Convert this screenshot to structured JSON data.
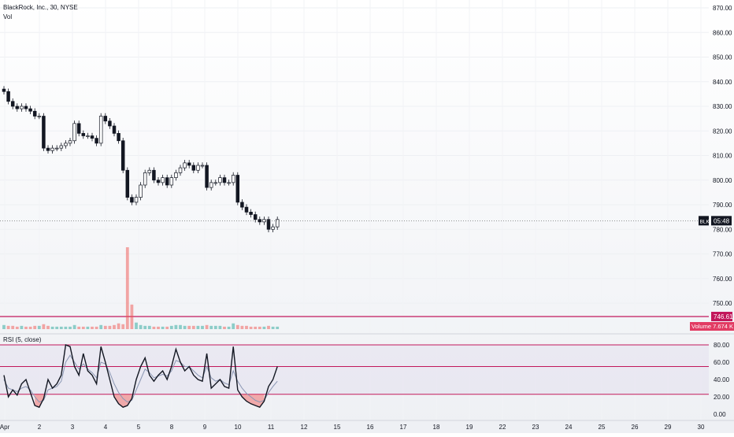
{
  "header": {
    "title": "BlackRock, Inc., 30, NYSE",
    "volume_label": "Vol"
  },
  "chart_data": {
    "type": "candlestick",
    "symbol": "BLK",
    "timeframe": "30",
    "exchange": "NYSE",
    "price_axis": {
      "ticks": [
        "870.00",
        "860.00",
        "850.00",
        "840.00",
        "830.00",
        "820.00",
        "810.00",
        "800.00",
        "790.00",
        "780.00",
        "770.00",
        "760.00",
        "750.00"
      ],
      "range": [
        745,
        872
      ]
    },
    "last_price_badge": {
      "symbol": "BLK",
      "countdown": "05:48",
      "price": 783.5
    },
    "support_line": {
      "label": "746.61",
      "value": 746.61,
      "color": "#c2185b"
    },
    "volume_badge": {
      "label": "Volume",
      "value": "7.674 K"
    },
    "price_series": [
      836,
      832,
      830,
      829,
      830,
      829,
      828,
      826,
      826,
      813,
      812,
      813,
      813,
      814,
      815,
      816,
      823,
      819,
      818,
      818,
      817,
      815,
      826,
      824,
      822,
      819,
      816,
      804,
      793,
      791,
      793,
      798,
      803,
      804,
      800,
      799,
      801,
      798,
      801,
      803,
      805,
      807,
      806,
      804,
      806,
      806,
      797,
      799,
      799,
      801,
      799,
      799,
      802,
      791,
      789,
      787,
      786,
      784,
      783,
      784,
      780,
      781,
      784
    ],
    "volume_series": [
      5,
      4,
      4,
      3,
      4,
      3,
      3,
      4,
      4,
      6,
      4,
      3,
      3,
      3,
      3,
      3,
      5,
      3,
      3,
      3,
      3,
      3,
      5,
      4,
      4,
      5,
      7,
      6,
      100,
      30,
      8,
      5,
      4,
      4,
      3,
      3,
      3,
      3,
      4,
      5,
      5,
      4,
      4,
      4,
      4,
      4,
      5,
      4,
      4,
      4,
      3,
      3,
      7,
      5,
      4,
      4,
      3,
      3,
      3,
      3,
      4,
      3,
      3
    ],
    "rsi": {
      "title": "RSI (5, close)",
      "ticks": [
        "80.00",
        "60.00",
        "40.00",
        "20.00",
        "0.00"
      ],
      "range": [
        0,
        85
      ],
      "upper_band": 55,
      "lower_band": 23,
      "rsi_values": [
        45,
        20,
        28,
        22,
        35,
        40,
        25,
        10,
        8,
        18,
        40,
        30,
        35,
        45,
        80,
        78,
        55,
        45,
        70,
        50,
        45,
        35,
        78,
        60,
        40,
        20,
        12,
        8,
        10,
        18,
        40,
        55,
        65,
        45,
        38,
        45,
        50,
        40,
        55,
        75,
        60,
        50,
        55,
        45,
        40,
        38,
        70,
        30,
        35,
        40,
        32,
        30,
        78,
        28,
        20,
        15,
        12,
        10,
        8,
        15,
        32,
        40,
        55
      ],
      "ma_values": [
        40,
        30,
        28,
        26,
        30,
        32,
        28,
        20,
        14,
        16,
        28,
        30,
        32,
        38,
        60,
        68,
        60,
        52,
        58,
        52,
        48,
        42,
        60,
        58,
        48,
        35,
        25,
        18,
        14,
        16,
        28,
        40,
        52,
        48,
        42,
        44,
        46,
        44,
        50,
        62,
        60,
        55,
        55,
        50,
        45,
        42,
        55,
        42,
        38,
        40,
        36,
        34,
        50,
        38,
        30,
        24,
        20,
        16,
        14,
        16,
        25,
        32,
        38
      ]
    },
    "x_axis_labels": [
      "Apr",
      "2",
      "3",
      "4",
      "5",
      "8",
      "9",
      "10",
      "11",
      "12",
      "15",
      "16",
      "17",
      "18",
      "19",
      "22",
      "23",
      "24",
      "25",
      "26",
      "29",
      "30"
    ],
    "colors": {
      "up": "#26a69a",
      "down": "#ef5350",
      "candle_dark": "#131722",
      "rsi_line": "#131722",
      "rsi_ma": "#8a96b3"
    }
  }
}
